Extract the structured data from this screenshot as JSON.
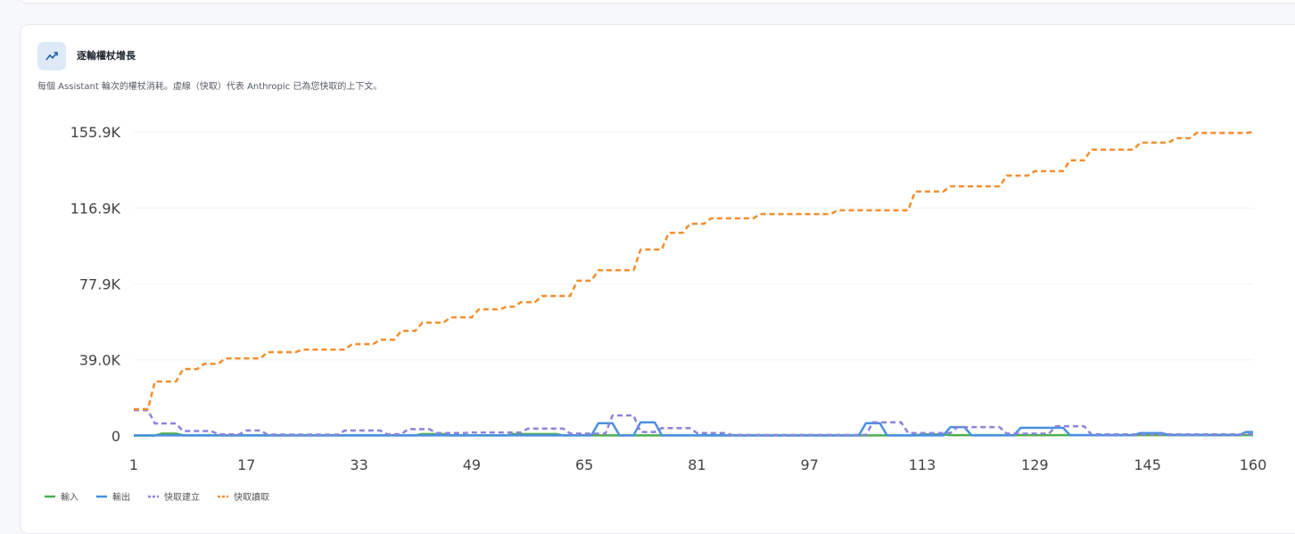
{
  "chart_data": {
    "type": "line",
    "title": "逐輪權杖增長",
    "subtitle": "每個 Assistant 輪次的權杖消耗。虛線（快取）代表 Anthropic 已為您快取的上下文。",
    "x": [
      1,
      2,
      3,
      4,
      5,
      6,
      7,
      8,
      9,
      10,
      11,
      12,
      13,
      14,
      15,
      16,
      17,
      18,
      19,
      20,
      21,
      22,
      23,
      24,
      25,
      26,
      27,
      28,
      29,
      30,
      31,
      32,
      33,
      34,
      35,
      36,
      37,
      38,
      39,
      40,
      41,
      42,
      43,
      44,
      45,
      46,
      47,
      48,
      49,
      50,
      51,
      52,
      53,
      54,
      55,
      56,
      57,
      58,
      59,
      60,
      61,
      62,
      63,
      64,
      65,
      66,
      67,
      68,
      69,
      70,
      71,
      72,
      73,
      74,
      75,
      76,
      77,
      78,
      79,
      80,
      81,
      82,
      83,
      84,
      85,
      86,
      87,
      88,
      89,
      90,
      91,
      92,
      93,
      94,
      95,
      96,
      97,
      98,
      99,
      100,
      101,
      102,
      103,
      104,
      105,
      106,
      107,
      108,
      109,
      110,
      111,
      112,
      113,
      114,
      115,
      116,
      117,
      118,
      119,
      120,
      121,
      122,
      123,
      124,
      125,
      126,
      127,
      128,
      129,
      130,
      131,
      132,
      133,
      134,
      135,
      136,
      137,
      138,
      139,
      140,
      141,
      142,
      143,
      144,
      145,
      146,
      147,
      148,
      149,
      150,
      151,
      152,
      153,
      154,
      155,
      156,
      157,
      158,
      159,
      160
    ],
    "xlim": [
      1,
      160
    ],
    "xticks": [
      1,
      17,
      33,
      49,
      65,
      81,
      97,
      113,
      129,
      145,
      160
    ],
    "ylim": [
      0,
      155900
    ],
    "yticks": [
      0,
      {
        "value": 39000,
        "label": "39.0K"
      },
      {
        "value": 77900,
        "label": "77.9K"
      },
      {
        "value": 116900,
        "label": "116.9K"
      },
      {
        "value": 155900,
        "label": "155.9K"
      }
    ],
    "grid": true,
    "legend": "bottom-left",
    "series": [
      {
        "name": "輸入",
        "color": "#4caf50",
        "line_style": "solid",
        "values": [
          200,
          200,
          200,
          200,
          1200,
          1200,
          1200,
          300,
          300,
          300,
          300,
          300,
          300,
          300,
          300,
          300,
          300,
          300,
          300,
          300,
          300,
          300,
          300,
          300,
          300,
          300,
          300,
          300,
          300,
          300,
          300,
          300,
          300,
          300,
          300,
          300,
          300,
          300,
          300,
          300,
          300,
          1000,
          1000,
          1000,
          1000,
          300,
          300,
          300,
          300,
          300,
          300,
          300,
          300,
          300,
          1000,
          1000,
          1000,
          1000,
          1000,
          1000,
          1000,
          300,
          300,
          300,
          300,
          300,
          300,
          300,
          300,
          300,
          300,
          300,
          300,
          300,
          300,
          300,
          300,
          300,
          300,
          300,
          300,
          300,
          300,
          300,
          300,
          300,
          300,
          300,
          300,
          300,
          300,
          300,
          300,
          300,
          300,
          300,
          300,
          300,
          300,
          300,
          300,
          300,
          300,
          300,
          300,
          300,
          300,
          300,
          300,
          300,
          300,
          300,
          800,
          800,
          800,
          800,
          400,
          400,
          400,
          400,
          400,
          400,
          400,
          400,
          400,
          400,
          400,
          400,
          400,
          400,
          400,
          400,
          400,
          400,
          400,
          400,
          400,
          400,
          400,
          400,
          400,
          400,
          400,
          400,
          400,
          400,
          400,
          400,
          400,
          400,
          400,
          400,
          400,
          400,
          400,
          400,
          400,
          400,
          400,
          400
        ]
      },
      {
        "name": "輸出",
        "color": "#4a90e2",
        "line_style": "solid",
        "values": [
          300,
          300,
          300,
          300,
          300,
          300,
          300,
          300,
          300,
          300,
          300,
          300,
          300,
          300,
          300,
          300,
          300,
          300,
          300,
          300,
          300,
          300,
          300,
          300,
          300,
          300,
          300,
          300,
          300,
          300,
          300,
          300,
          300,
          300,
          300,
          300,
          300,
          300,
          300,
          300,
          300,
          300,
          300,
          300,
          300,
          300,
          300,
          300,
          300,
          300,
          300,
          300,
          300,
          300,
          300,
          300,
          300,
          300,
          300,
          300,
          300,
          300,
          300,
          300,
          300,
          300,
          6500,
          6500,
          6500,
          300,
          300,
          300,
          7000,
          7000,
          7000,
          300,
          300,
          300,
          300,
          300,
          300,
          300,
          300,
          300,
          300,
          300,
          300,
          300,
          300,
          300,
          300,
          300,
          300,
          300,
          300,
          300,
          300,
          300,
          300,
          300,
          300,
          300,
          300,
          300,
          6500,
          6500,
          6500,
          300,
          300,
          300,
          300,
          300,
          300,
          300,
          300,
          300,
          4500,
          4500,
          4500,
          300,
          300,
          300,
          300,
          300,
          300,
          300,
          4200,
          4200,
          4200,
          4200,
          4200,
          4200,
          4200,
          400,
          400,
          400,
          400,
          400,
          400,
          400,
          400,
          400,
          400,
          1500,
          1500,
          1500,
          1500,
          500,
          500,
          500,
          500,
          500,
          500,
          500,
          500,
          500,
          500,
          500,
          2000,
          2000
        ]
      },
      {
        "name": "快取建立",
        "color": "#8a84dc",
        "line_style": "dashed",
        "values": [
          13200,
          13200,
          13200,
          6400,
          6400,
          6400,
          6400,
          2500,
          2500,
          2500,
          2500,
          2500,
          800,
          800,
          800,
          800,
          2800,
          2800,
          2800,
          700,
          700,
          700,
          700,
          700,
          700,
          700,
          700,
          700,
          700,
          700,
          2800,
          2800,
          2800,
          2800,
          2800,
          2800,
          900,
          900,
          900,
          3500,
          3500,
          3500,
          3500,
          1500,
          1500,
          1500,
          1500,
          1500,
          1800,
          1800,
          1800,
          1800,
          1800,
          1800,
          1800,
          1800,
          3800,
          3800,
          3800,
          3800,
          3800,
          3800,
          1200,
          1200,
          1200,
          1200,
          1200,
          1200,
          10500,
          10500,
          10500,
          10500,
          2000,
          2000,
          2000,
          4000,
          4000,
          4000,
          4000,
          4000,
          1500,
          1500,
          1500,
          1500,
          1500,
          500,
          500,
          500,
          500,
          500,
          500,
          500,
          500,
          500,
          500,
          500,
          500,
          500,
          500,
          500,
          500,
          500,
          500,
          500,
          500,
          7000,
          7000,
          7000,
          7000,
          7000,
          1500,
          1500,
          1500,
          1500,
          1500,
          1500,
          1500,
          4500,
          4500,
          4500,
          4500,
          4500,
          4500,
          4500,
          1200,
          1200,
          1200,
          1200,
          1200,
          1200,
          1200,
          5000,
          5000,
          5000,
          5000,
          5000,
          800,
          800,
          800,
          800,
          800,
          800,
          800,
          800,
          800,
          800,
          800,
          800,
          800,
          800,
          800,
          800,
          800,
          800,
          800,
          800,
          800,
          800,
          800,
          800
        ]
      },
      {
        "name": "快取讀取",
        "color": "#f28e2b",
        "line_style": "dashed",
        "values": [
          13700,
          13700,
          13700,
          27900,
          27900,
          27900,
          27900,
          34300,
          34300,
          34300,
          37000,
          37000,
          37000,
          39800,
          39800,
          39800,
          39800,
          39800,
          39800,
          43000,
          43000,
          43000,
          43000,
          43000,
          44300,
          44300,
          44300,
          44300,
          44300,
          44300,
          44300,
          47100,
          47100,
          47100,
          47100,
          49400,
          49400,
          49400,
          53900,
          53900,
          53900,
          58100,
          58100,
          58100,
          58100,
          60800,
          60800,
          60800,
          60800,
          64900,
          64900,
          64900,
          64900,
          66300,
          66300,
          68600,
          68600,
          68600,
          71800,
          71800,
          71800,
          71800,
          71800,
          79600,
          79600,
          79600,
          85000,
          85000,
          85000,
          85000,
          85000,
          85000,
          95600,
          95600,
          95600,
          95600,
          104200,
          104200,
          104200,
          108800,
          108800,
          108800,
          111600,
          111600,
          111600,
          111600,
          111600,
          111600,
          111600,
          113800,
          113800,
          113800,
          113800,
          113800,
          113800,
          113800,
          113800,
          113800,
          113800,
          113800,
          115700,
          115700,
          115700,
          115700,
          115700,
          115700,
          115700,
          115700,
          115700,
          115700,
          115700,
          125300,
          125300,
          125300,
          125300,
          125300,
          128000,
          128000,
          128000,
          128000,
          128000,
          128000,
          128000,
          128000,
          133500,
          133500,
          133500,
          133500,
          135800,
          135800,
          135800,
          135800,
          135800,
          141300,
          141300,
          141300,
          146800,
          146800,
          146800,
          146800,
          146800,
          146800,
          146800,
          150400,
          150400,
          150400,
          150400,
          150400,
          152700,
          152700,
          152700,
          155400,
          155400,
          155400,
          155400,
          155400,
          155400,
          155400,
          155400,
          155900
        ]
      }
    ]
  }
}
